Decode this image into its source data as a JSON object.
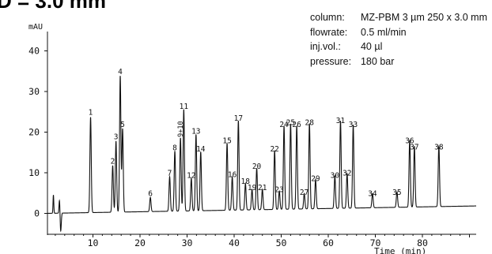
{
  "header": {
    "title_fragment": "D = 3.0 mm"
  },
  "conditions": [
    {
      "label": "column:",
      "value": "MZ-PBM 3 µm 250 x 3.0 mm"
    },
    {
      "label": "flowrate:",
      "value": "0.5 ml/min"
    },
    {
      "label": "inj.vol.:",
      "value": "40 µl"
    },
    {
      "label": "pressure:",
      "value": "180 bar"
    }
  ],
  "chart_data": {
    "type": "line",
    "title": "",
    "ylabel": "mAU",
    "xlabel": "Time (min)",
    "xlim": [
      0,
      88
    ],
    "ylim": [
      -3,
      45
    ],
    "x_ticks": [
      10,
      20,
      30,
      40,
      50,
      60,
      70,
      80
    ],
    "x_tick_labels": [
      "10",
      "20",
      "30",
      "40",
      "50",
      "60",
      "70",
      "80"
    ],
    "y_ticks": [
      0,
      10,
      20,
      30,
      40
    ],
    "y_tick_labels": [
      "0",
      "10",
      "20",
      "30",
      "40"
    ],
    "grid": false,
    "line_color": "#111111",
    "series": [
      {
        "peaks": [
          {
            "label": "1",
            "t": 9.5,
            "h": 23.5
          },
          {
            "label": "2",
            "t": 14.2,
            "h": 11.5
          },
          {
            "label": "3",
            "t": 14.9,
            "h": 17.5
          },
          {
            "label": "4",
            "t": 15.8,
            "h": 33.5
          },
          {
            "label": "5",
            "t": 16.3,
            "h": 20.5
          },
          {
            "label": "6",
            "t": 22.2,
            "h": 3.5
          },
          {
            "label": "7",
            "t": 26.3,
            "h": 8.5
          },
          {
            "label": "8",
            "t": 27.4,
            "h": 14.8
          },
          {
            "label": "9+10",
            "t": 28.6,
            "h": 18.0
          },
          {
            "label": "11",
            "t": 29.3,
            "h": 25.0
          },
          {
            "label": "12",
            "t": 30.9,
            "h": 8.0
          },
          {
            "label": "13",
            "t": 31.9,
            "h": 18.8
          },
          {
            "label": "14",
            "t": 32.9,
            "h": 14.5
          },
          {
            "label": "15",
            "t": 38.5,
            "h": 16.5
          },
          {
            "label": "16",
            "t": 39.6,
            "h": 8.2
          },
          {
            "label": "17",
            "t": 40.9,
            "h": 22.0
          },
          {
            "label": "18",
            "t": 42.4,
            "h": 6.5
          },
          {
            "label": "19",
            "t": 43.8,
            "h": 5.0
          },
          {
            "label": "20",
            "t": 44.8,
            "h": 10.2
          },
          {
            "label": "21",
            "t": 46.0,
            "h": 5.0
          },
          {
            "label": "22",
            "t": 48.6,
            "h": 14.5
          },
          {
            "label": "23",
            "t": 49.6,
            "h": 4.5
          },
          {
            "label": "24",
            "t": 50.6,
            "h": 20.5
          },
          {
            "label": "25",
            "t": 52.0,
            "h": 21.0
          },
          {
            "label": "26",
            "t": 53.3,
            "h": 20.5
          },
          {
            "label": "27",
            "t": 54.9,
            "h": 3.8
          },
          {
            "label": "28",
            "t": 56.0,
            "h": 21.0
          },
          {
            "label": "29",
            "t": 57.3,
            "h": 7.2
          },
          {
            "label": "30",
            "t": 61.4,
            "h": 8.0
          },
          {
            "label": "31",
            "t": 62.6,
            "h": 21.5
          },
          {
            "label": "32",
            "t": 64.0,
            "h": 8.5
          },
          {
            "label": "33",
            "t": 65.3,
            "h": 20.5
          },
          {
            "label": "34",
            "t": 69.4,
            "h": 3.5
          },
          {
            "label": "35",
            "t": 74.6,
            "h": 3.8
          },
          {
            "label": "36",
            "t": 77.3,
            "h": 16.5
          },
          {
            "label": "37",
            "t": 78.3,
            "h": 15.0
          },
          {
            "label": "38",
            "t": 83.5,
            "h": 15.0
          }
        ]
      }
    ]
  }
}
